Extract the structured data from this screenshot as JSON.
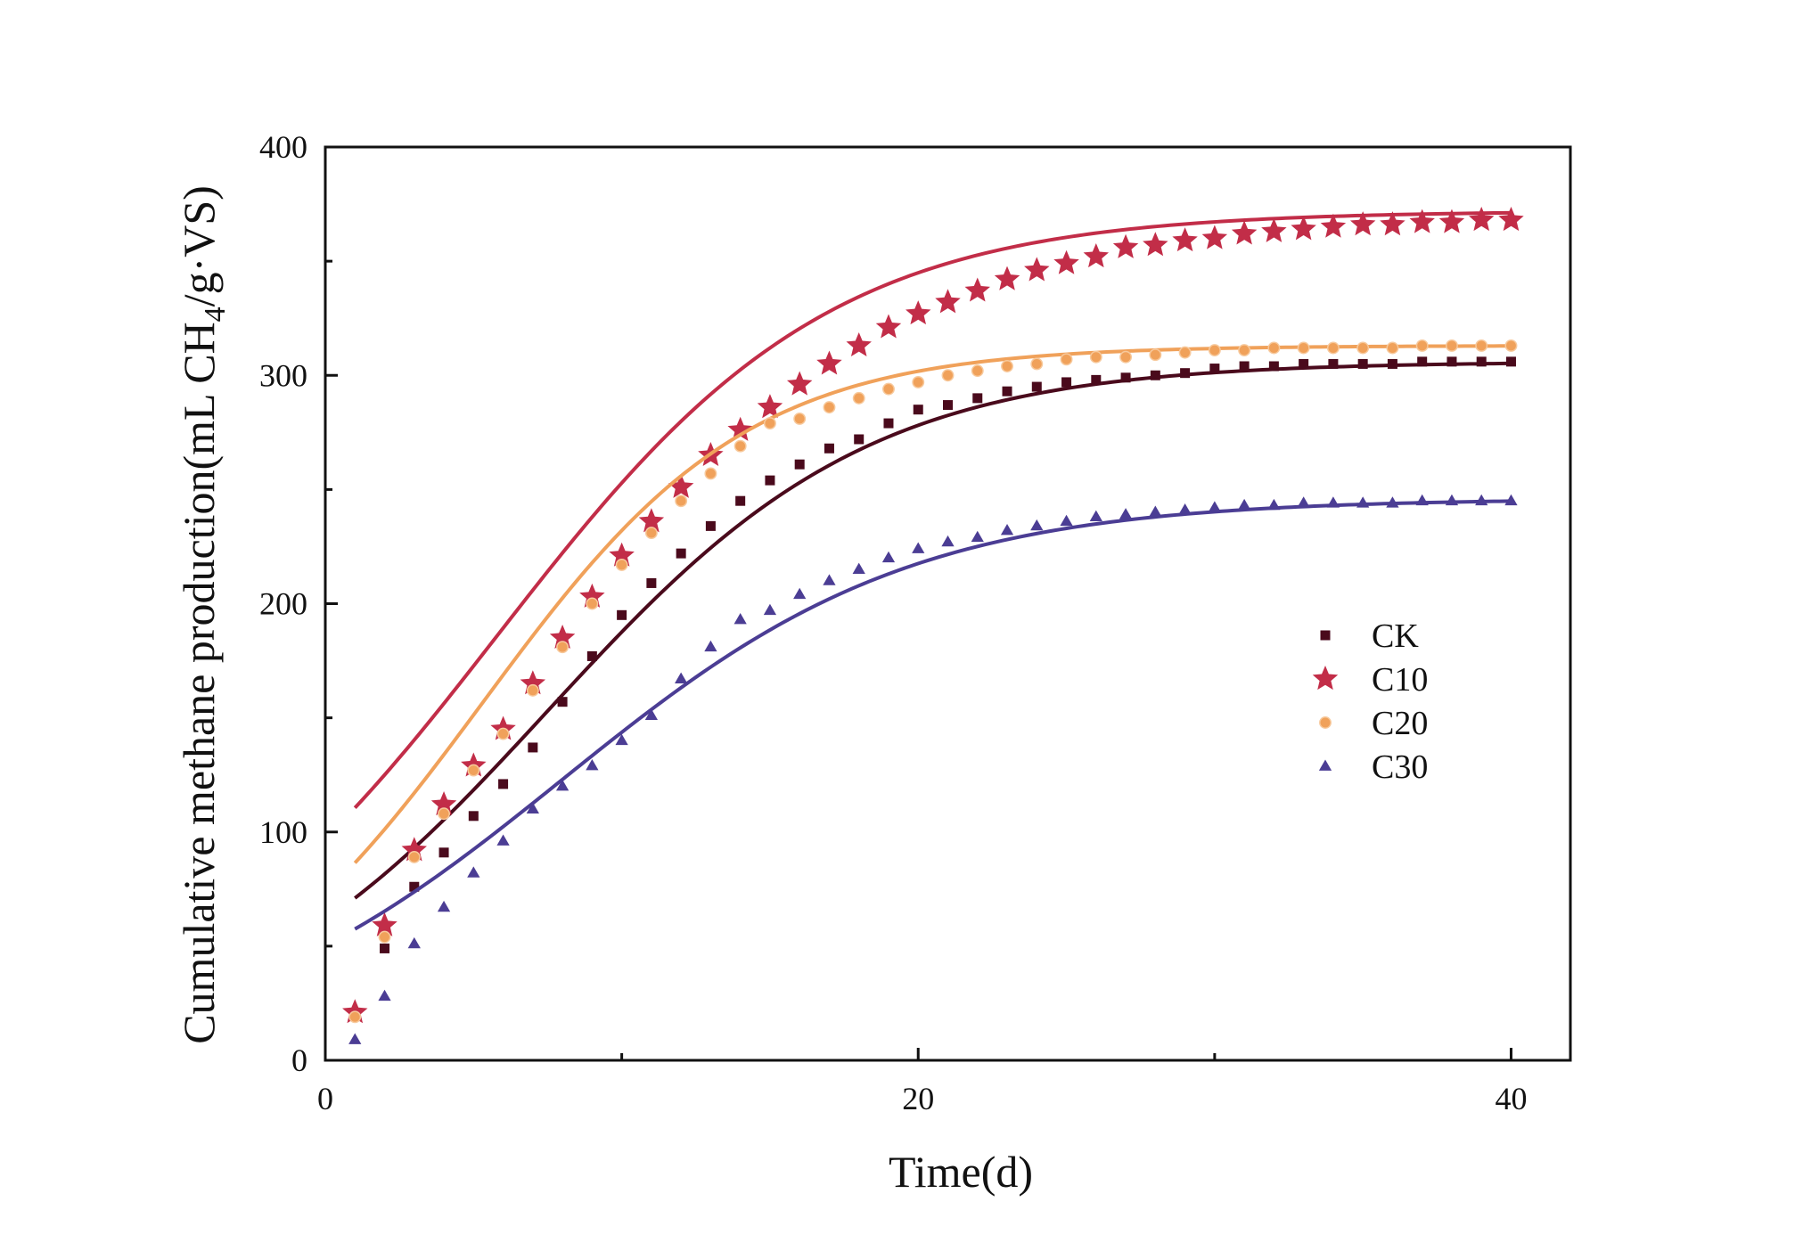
{
  "chart_data": {
    "type": "scatter",
    "xlabel": "Time(d)",
    "ylabel": {
      "main": "Cumulative methane production(mL CH",
      "sub": "4",
      "tail": "/g·VS)"
    },
    "xlim": [
      0,
      42
    ],
    "ylim": [
      0,
      400
    ],
    "xticks": [
      0,
      20,
      40
    ],
    "yticks": [
      0,
      100,
      200,
      300,
      400
    ],
    "grid": false,
    "legend_position": "right-middle",
    "series": [
      {
        "name": "CK",
        "marker": "square",
        "color": "#4a0a1c",
        "x": [
          1,
          2,
          3,
          4,
          5,
          6,
          7,
          8,
          9,
          10,
          11,
          12,
          13,
          14,
          15,
          16,
          17,
          18,
          19,
          20,
          21,
          22,
          23,
          24,
          25,
          26,
          27,
          28,
          29,
          30,
          31,
          32,
          33,
          34,
          35,
          36,
          37,
          38,
          39,
          40
        ],
        "y": [
          20,
          49,
          76,
          91,
          107,
          121,
          137,
          157,
          177,
          195,
          209,
          222,
          234,
          245,
          254,
          261,
          268,
          272,
          279,
          285,
          287,
          290,
          293,
          295,
          297,
          298,
          299,
          300,
          301,
          303,
          304,
          304,
          305,
          305,
          305,
          305,
          306,
          306,
          306,
          306
        ],
        "fit": {
          "ymax": 306,
          "rate": 0.115,
          "lag": 7.5
        }
      },
      {
        "name": "C10",
        "marker": "star",
        "color": "#c22d48",
        "x": [
          1,
          2,
          3,
          4,
          5,
          6,
          7,
          8,
          9,
          10,
          11,
          12,
          13,
          14,
          15,
          16,
          17,
          18,
          19,
          20,
          21,
          22,
          23,
          24,
          25,
          26,
          27,
          28,
          29,
          30,
          31,
          32,
          33,
          34,
          35,
          36,
          37,
          38,
          39,
          40
        ],
        "y": [
          21,
          59,
          92,
          112,
          129,
          145,
          165,
          185,
          203,
          221,
          236,
          251,
          265,
          276,
          286,
          296,
          305,
          313,
          321,
          327,
          332,
          337,
          342,
          346,
          349,
          352,
          356,
          357,
          359,
          360,
          362,
          363,
          364,
          365,
          366,
          366,
          367,
          367,
          368,
          368
        ],
        "fit": {
          "ymax": 372,
          "rate": 0.112,
          "lag": 5.8
        }
      },
      {
        "name": "C20",
        "marker": "circle",
        "color": "#f0a15a",
        "x": [
          1,
          2,
          3,
          4,
          5,
          6,
          7,
          8,
          9,
          10,
          11,
          12,
          13,
          14,
          15,
          16,
          17,
          18,
          19,
          20,
          21,
          22,
          23,
          24,
          25,
          26,
          27,
          28,
          29,
          30,
          31,
          32,
          33,
          34,
          35,
          36,
          37,
          38,
          39,
          40
        ],
        "y": [
          19,
          54,
          89,
          108,
          127,
          143,
          162,
          181,
          200,
          217,
          231,
          245,
          257,
          269,
          279,
          281,
          286,
          290,
          294,
          297,
          300,
          302,
          304,
          305,
          307,
          308,
          308,
          309,
          310,
          311,
          311,
          312,
          312,
          312,
          312,
          312,
          313,
          313,
          313,
          313
        ],
        "fit": {
          "ymax": 313,
          "rate": 0.14,
          "lag": 5.3
        }
      },
      {
        "name": "C30",
        "marker": "triangle",
        "color": "#4b3d94",
        "x": [
          1,
          2,
          3,
          4,
          5,
          6,
          7,
          8,
          9,
          10,
          11,
          12,
          13,
          14,
          15,
          16,
          17,
          18,
          19,
          20,
          21,
          22,
          23,
          24,
          25,
          26,
          27,
          28,
          29,
          30,
          31,
          32,
          33,
          34,
          35,
          36,
          37,
          38,
          39,
          40
        ],
        "y": [
          9,
          28,
          51,
          67,
          82,
          96,
          110,
          120,
          129,
          140,
          151,
          167,
          181,
          193,
          197,
          204,
          210,
          215,
          220,
          224,
          227,
          229,
          232,
          234,
          236,
          238,
          239,
          240,
          241,
          242,
          243,
          243,
          244,
          244,
          244,
          244,
          245,
          245,
          245,
          245
        ],
        "fit": {
          "ymax": 246,
          "rate": 0.106,
          "lag": 8.0
        }
      }
    ]
  }
}
